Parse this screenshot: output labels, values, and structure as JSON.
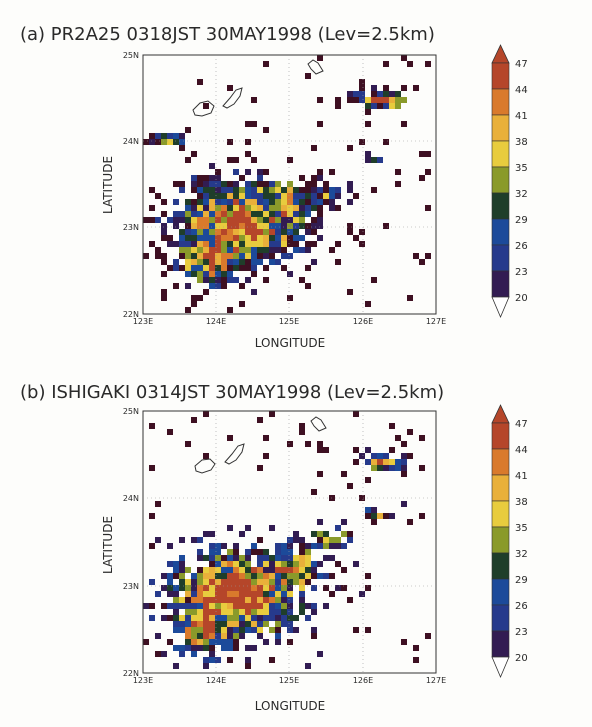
{
  "panels": [
    {
      "id": "a",
      "title": "(a)  PR2A25  0318JST  30MAY1998  (Lev=2.5km)",
      "xlabel": "LONGITUDE",
      "ylabel": "LATITUDE",
      "xticks": [
        "123E",
        "124E",
        "125E",
        "126E",
        "127E"
      ],
      "yticks": [
        "22N",
        "23N",
        "24N",
        "25N"
      ]
    },
    {
      "id": "b",
      "title": "(b)  ISHIGAKI  0314JST  30MAY1998  (Lev=2.5km)",
      "xlabel": "LONGITUDE",
      "ylabel": "LATITUDE",
      "xticks": [
        "123E",
        "124E",
        "125E",
        "126E",
        "127E"
      ],
      "yticks": [
        "22N",
        "23N",
        "24N",
        "25N"
      ]
    }
  ],
  "colorbar": {
    "levels": [
      "47",
      "44",
      "41",
      "38",
      "35",
      "32",
      "29",
      "26",
      "23",
      "20"
    ],
    "colors": [
      "#b5462a",
      "#d97a2c",
      "#e9b03a",
      "#e8cc3e",
      "#8a9a2a",
      "#1f3e2a",
      "#1c4a9a",
      "#263a8c",
      "#321c52",
      "#3e1022"
    ]
  }
}
